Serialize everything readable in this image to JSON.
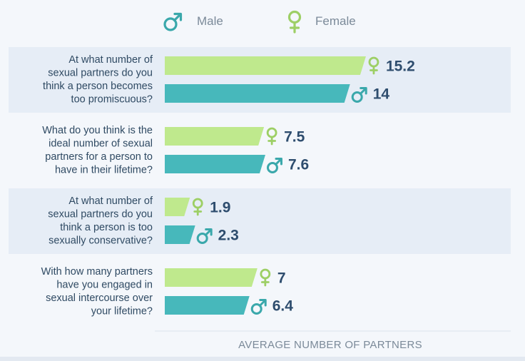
{
  "legend": {
    "male_label": "Male",
    "female_label": "Female"
  },
  "colors": {
    "male": "#47b8bb",
    "female": "#bfe98d",
    "male_icon": "#3aa8ab",
    "female_icon": "#9dcf65",
    "value_text": "#2e4d6e",
    "band": "#e6edf6"
  },
  "icons": {
    "male": "male-symbol-icon",
    "female": "female-symbol-icon"
  },
  "chart_data": {
    "type": "bar",
    "orientation": "horizontal",
    "xlabel": "AVERAGE NUMBER OF PARTNERS",
    "xlim": [
      0,
      16.4
    ],
    "categories": [
      [
        "At what number of",
        "sexual partners do you",
        "think a person becomes",
        "too promiscuous?"
      ],
      [
        "What do you think is the",
        "ideal number of sexual",
        "partners for a person to",
        "have in their lifetime?"
      ],
      [
        "At what number of",
        "sexual partners do you",
        "think a person is too",
        "sexually conservative?"
      ],
      [
        "With how many partners",
        "have you engaged in",
        "sexual intercourse over",
        "your lifetime?"
      ]
    ],
    "series": [
      {
        "name": "Female",
        "values": [
          15.2,
          7.5,
          1.9,
          7
        ],
        "labels": [
          "15.2",
          "7.5",
          "1.9",
          "7"
        ]
      },
      {
        "name": "Male",
        "values": [
          14,
          7.6,
          2.3,
          6.4
        ],
        "labels": [
          "14",
          "7.6",
          "2.3",
          "6.4"
        ]
      }
    ],
    "grid": false,
    "legend_position": "top"
  }
}
